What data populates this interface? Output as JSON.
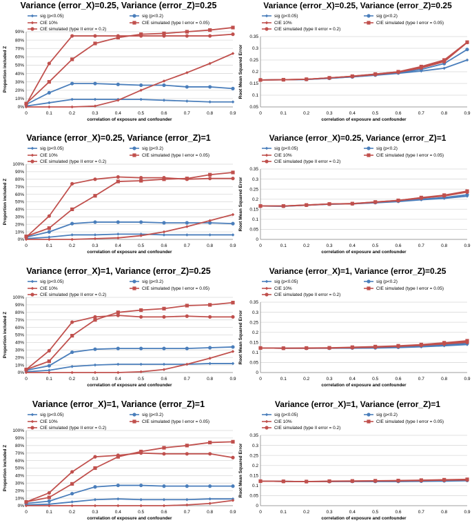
{
  "colors": {
    "blue": "#4a7ebb",
    "red": "#c0504d"
  },
  "legend": [
    {
      "label": "sig (p<0.05)",
      "color": "blue",
      "marker": "diamond"
    },
    {
      "label": "sig (p<0.2)",
      "color": "blue",
      "marker": "circle"
    },
    {
      "label": "CIE 10%",
      "color": "red",
      "marker": "diamond"
    },
    {
      "label": "CIE simulated (type I error = 0.05)",
      "color": "red",
      "marker": "square"
    },
    {
      "label": "CIE simulated (type II error = 0.2)",
      "color": "red",
      "marker": "circle"
    }
  ],
  "chart_data": [
    {
      "type": "line",
      "row": 0,
      "col": 0,
      "title": "Variance (error_X)=0.25, Variance (error_Z)=0.25",
      "xlabel": "correlation of exposure and confounder",
      "ylabel": "Proportion included Z",
      "x": [
        0,
        0.1,
        0.2,
        0.3,
        0.4,
        0.5,
        0.6,
        0.7,
        0.8,
        0.9
      ],
      "xticks": [
        "0",
        "0.1",
        "0.2",
        "0.3",
        "0.4",
        "0.5",
        "0.6",
        "0.7",
        "0.8",
        "0.9"
      ],
      "ylim": [
        0,
        100
      ],
      "yticks": [
        "0%",
        "10%",
        "20%",
        "30%",
        "40%",
        "50%",
        "60%",
        "70%",
        "80%",
        "90%"
      ],
      "series": [
        {
          "name": "sig (p<0.05)",
          "values": [
            1,
            5,
            9,
            9,
            9,
            9,
            8,
            7,
            6,
            6
          ]
        },
        {
          "name": "sig (p<0.2)",
          "values": [
            3,
            17,
            28,
            28,
            27,
            26,
            26,
            24,
            24,
            22
          ]
        },
        {
          "name": "CIE 10%",
          "values": [
            0,
            0,
            0,
            1,
            8,
            20,
            31,
            41,
            52,
            64
          ]
        },
        {
          "name": "CIE simulated (type I error = 0.05)",
          "values": [
            4,
            30,
            57,
            76,
            83,
            87,
            88,
            90,
            92,
            95
          ]
        },
        {
          "name": "CIE simulated (type II error = 0.2)",
          "values": [
            3,
            52,
            85,
            85,
            85,
            85,
            85,
            85,
            85,
            87
          ]
        }
      ]
    },
    {
      "type": "line",
      "row": 0,
      "col": 1,
      "title": "Variance (error_X)=0.25, Variance (error_Z)=0.25",
      "xlabel": "correlation of exposure and confounder",
      "ylabel": "Root Mean Squared Error",
      "x": [
        0,
        0.1,
        0.2,
        0.3,
        0.4,
        0.5,
        0.6,
        0.7,
        0.8,
        0.9
      ],
      "xticks": [
        "0",
        "0.1",
        "0.2",
        "0.3",
        "0.4",
        "0.5",
        "0.6",
        "0.7",
        "0.8",
        "0.9"
      ],
      "ylim": [
        0.05,
        0.35
      ],
      "yticks": [
        "0.05",
        "0.1",
        "0.15",
        "0.2",
        "0.25",
        "0.3",
        "0.35"
      ],
      "series": [
        {
          "name": "sig (p<0.05)",
          "values": [
            0.165,
            0.166,
            0.167,
            0.172,
            0.178,
            0.185,
            0.193,
            0.203,
            0.215,
            0.25
          ]
        },
        {
          "name": "sig (p<0.2)",
          "values": [
            0.165,
            0.166,
            0.167,
            0.172,
            0.178,
            0.186,
            0.195,
            0.21,
            0.235,
            0.295
          ]
        },
        {
          "name": "CIE 10%",
          "values": [
            0.165,
            0.166,
            0.168,
            0.174,
            0.181,
            0.19,
            0.2,
            0.218,
            0.245,
            0.325
          ]
        },
        {
          "name": "CIE simulated (type I error = 0.05)",
          "values": [
            0.165,
            0.166,
            0.168,
            0.174,
            0.181,
            0.19,
            0.2,
            0.222,
            0.25,
            0.326
          ]
        },
        {
          "name": "CIE simulated (type II error = 0.2)",
          "values": [
            0.165,
            0.166,
            0.168,
            0.174,
            0.18,
            0.188,
            0.198,
            0.216,
            0.243,
            0.325
          ]
        }
      ]
    },
    {
      "type": "line",
      "row": 1,
      "col": 0,
      "title": "Variance (error_X)=0.25, Variance (error_Z)=1",
      "xlabel": "correlation of exposure and confounder",
      "ylabel": "Proportion included Z",
      "x": [
        0,
        0.1,
        0.2,
        0.3,
        0.4,
        0.5,
        0.6,
        0.7,
        0.8,
        0.9
      ],
      "xticks": [
        "0",
        "0.1",
        "0.2",
        "0.3",
        "0.4",
        "0.5",
        "0.6",
        "0.7",
        "0.8",
        "0.9"
      ],
      "ylim": [
        0,
        100
      ],
      "yticks": [
        "0%",
        "10%",
        "20%",
        "30%",
        "40%",
        "50%",
        "60%",
        "70%",
        "80%",
        "90%",
        "100%"
      ],
      "series": [
        {
          "name": "sig (p<0.05)",
          "values": [
            1,
            3,
            6,
            6,
            7,
            7,
            6,
            6,
            6,
            6
          ]
        },
        {
          "name": "sig (p<0.2)",
          "values": [
            3,
            10,
            21,
            23,
            23,
            23,
            22,
            22,
            22,
            21
          ]
        },
        {
          "name": "CIE 10%",
          "values": [
            0,
            0,
            0,
            1,
            2,
            5,
            10,
            17,
            25,
            33
          ]
        },
        {
          "name": "CIE simulated (type I error = 0.05)",
          "values": [
            4,
            15,
            40,
            58,
            77,
            78,
            80,
            81,
            86,
            89
          ]
        },
        {
          "name": "CIE simulated (type II error = 0.2)",
          "values": [
            3,
            31,
            74,
            80,
            83,
            82,
            82,
            80,
            81,
            81
          ]
        }
      ]
    },
    {
      "type": "line",
      "row": 1,
      "col": 1,
      "title": "Variance (error_X)=0.25, Variance (error_Z)=1",
      "xlabel": "correlation of exposure and confounder",
      "ylabel": "Root Mean Squared Error",
      "x": [
        0,
        0.1,
        0.2,
        0.3,
        0.4,
        0.5,
        0.6,
        0.7,
        0.8,
        0.9
      ],
      "xticks": [
        "0",
        "0.1",
        "0.2",
        "0.3",
        "0.4",
        "0.5",
        "0.6",
        "0.7",
        "0.8",
        "0.9"
      ],
      "ylim": [
        0,
        0.35
      ],
      "yticks": [
        "0",
        "0.05",
        "0.1",
        "0.15",
        "0.2",
        "0.25",
        "0.3",
        "0.35"
      ],
      "series": [
        {
          "name": "sig (p<0.05)",
          "values": [
            0.166,
            0.165,
            0.17,
            0.175,
            0.177,
            0.182,
            0.188,
            0.197,
            0.204,
            0.215
          ]
        },
        {
          "name": "sig (p<0.2)",
          "values": [
            0.166,
            0.165,
            0.17,
            0.175,
            0.177,
            0.183,
            0.19,
            0.2,
            0.208,
            0.222
          ]
        },
        {
          "name": "CIE 10%",
          "values": [
            0.166,
            0.166,
            0.171,
            0.176,
            0.178,
            0.186,
            0.194,
            0.207,
            0.218,
            0.238
          ]
        },
        {
          "name": "CIE simulated (type I error = 0.05)",
          "values": [
            0.166,
            0.166,
            0.171,
            0.176,
            0.178,
            0.186,
            0.194,
            0.208,
            0.22,
            0.24
          ]
        },
        {
          "name": "CIE simulated (type II error = 0.2)",
          "values": [
            0.166,
            0.166,
            0.17,
            0.176,
            0.177,
            0.185,
            0.193,
            0.205,
            0.216,
            0.235
          ]
        }
      ]
    },
    {
      "type": "line",
      "row": 2,
      "col": 0,
      "title": "Variance (error_X)=1, Variance (error_Z)=0.25",
      "xlabel": "correlation of exposure and confounder",
      "ylabel": "Proportion included Z",
      "x": [
        0,
        0.1,
        0.2,
        0.3,
        0.4,
        0.5,
        0.6,
        0.7,
        0.8,
        0.9
      ],
      "xticks": [
        "0",
        "0.1",
        "0.2",
        "0.3",
        "0.4",
        "0.5",
        "0.6",
        "0.7",
        "0.8",
        "0.9"
      ],
      "ylim": [
        0,
        100
      ],
      "yticks": [
        "0%",
        "10%",
        "20%",
        "30%",
        "40%",
        "50%",
        "60%",
        "70%",
        "80%",
        "90%",
        "100%"
      ],
      "series": [
        {
          "name": "sig (p<0.05)",
          "values": [
            1,
            3,
            8,
            10,
            11,
            11,
            11,
            11,
            12,
            12
          ]
        },
        {
          "name": "sig (p<0.2)",
          "values": [
            3,
            9,
            27,
            31,
            32,
            32,
            32,
            32,
            33,
            34
          ]
        },
        {
          "name": "CIE 10%",
          "values": [
            0,
            0,
            0,
            0,
            0,
            1,
            4,
            11,
            19,
            28
          ]
        },
        {
          "name": "CIE simulated (type I error = 0.05)",
          "values": [
            4,
            15,
            49,
            70,
            80,
            83,
            85,
            89,
            90,
            93
          ]
        },
        {
          "name": "CIE simulated (type II error = 0.2)",
          "values": [
            4,
            29,
            67,
            74,
            76,
            74,
            74,
            75,
            74,
            74
          ]
        }
      ]
    },
    {
      "type": "line",
      "row": 2,
      "col": 1,
      "title": "Variance (error_X)=1, Variance (error_Z)=0.25",
      "xlabel": "correlation of exposure and confounder",
      "ylabel": "Root Mean Squared Error",
      "x": [
        0,
        0.1,
        0.2,
        0.3,
        0.4,
        0.5,
        0.6,
        0.7,
        0.8,
        0.9
      ],
      "xticks": [
        "0",
        "0.1",
        "0.2",
        "0.3",
        "0.4",
        "0.5",
        "0.6",
        "0.7",
        "0.8",
        "0.9"
      ],
      "ylim": [
        0,
        0.35
      ],
      "yticks": [
        "0",
        "0.05",
        "0.1",
        "0.15",
        "0.2",
        "0.25",
        "0.3",
        "0.35"
      ],
      "series": [
        {
          "name": "sig (p<0.05)",
          "values": [
            0.122,
            0.121,
            0.121,
            0.121,
            0.121,
            0.122,
            0.124,
            0.128,
            0.133,
            0.139
          ]
        },
        {
          "name": "sig (p<0.2)",
          "values": [
            0.122,
            0.121,
            0.121,
            0.121,
            0.122,
            0.123,
            0.126,
            0.131,
            0.137,
            0.145
          ]
        },
        {
          "name": "CIE 10%",
          "values": [
            0.122,
            0.121,
            0.121,
            0.122,
            0.124,
            0.127,
            0.131,
            0.137,
            0.145,
            0.155
          ]
        },
        {
          "name": "CIE simulated (type I error = 0.05)",
          "values": [
            0.122,
            0.121,
            0.122,
            0.123,
            0.126,
            0.129,
            0.133,
            0.139,
            0.148,
            0.158
          ]
        },
        {
          "name": "CIE simulated (type II error = 0.2)",
          "values": [
            0.122,
            0.121,
            0.121,
            0.122,
            0.124,
            0.126,
            0.13,
            0.135,
            0.142,
            0.15
          ]
        }
      ]
    },
    {
      "type": "line",
      "row": 3,
      "col": 0,
      "title": "Variance (error_X)=1, Variance (error_Z)=1",
      "xlabel": "correlation of exposure and confounder",
      "ylabel": "Proportion included Z",
      "x": [
        0,
        0.1,
        0.2,
        0.3,
        0.4,
        0.5,
        0.6,
        0.7,
        0.8,
        0.9
      ],
      "xticks": [
        "0",
        "0.1",
        "0.2",
        "0.3",
        "0.4",
        "0.5",
        "0.6",
        "0.7",
        "0.8",
        "0.9"
      ],
      "ylim": [
        0,
        100
      ],
      "yticks": [
        "0%",
        "10%",
        "20%",
        "30%",
        "40%",
        "50%",
        "60%",
        "70%",
        "80%",
        "90%",
        "100%"
      ],
      "series": [
        {
          "name": "sig (p<0.05)",
          "values": [
            1,
            2,
            5,
            8,
            9,
            8,
            8,
            8,
            9,
            9
          ]
        },
        {
          "name": "sig (p<0.2)",
          "values": [
            3,
            6,
            16,
            25,
            27,
            27,
            26,
            26,
            26,
            26
          ]
        },
        {
          "name": "CIE 10%",
          "values": [
            0,
            0,
            0,
            0,
            0,
            0,
            0,
            1,
            3,
            7
          ]
        },
        {
          "name": "CIE simulated (type I error = 0.05)",
          "values": [
            5,
            11,
            29,
            50,
            65,
            72,
            77,
            80,
            84,
            85
          ]
        },
        {
          "name": "CIE simulated (type II error = 0.2)",
          "values": [
            5,
            17,
            45,
            65,
            67,
            70,
            69,
            69,
            69,
            64
          ]
        }
      ]
    },
    {
      "type": "line",
      "row": 3,
      "col": 1,
      "title": "Variance (error_X)=1, Variance (error_Z)=1",
      "xlabel": "correlation of exposure and confounder",
      "ylabel": "Root Mean Squared Error",
      "x": [
        0,
        0.1,
        0.2,
        0.3,
        0.4,
        0.5,
        0.6,
        0.7,
        0.8,
        0.9
      ],
      "xticks": [
        "0",
        "0.1",
        "0.2",
        "0.3",
        "0.4",
        "0.5",
        "0.6",
        "0.7",
        "0.8",
        "0.9"
      ],
      "ylim": [
        0,
        0.35
      ],
      "yticks": [
        "0",
        "0.05",
        "0.1",
        "0.15",
        "0.2",
        "0.25",
        "0.3",
        "0.35"
      ],
      "series": [
        {
          "name": "sig (p<0.05)",
          "values": [
            0.122,
            0.121,
            0.12,
            0.12,
            0.12,
            0.12,
            0.12,
            0.121,
            0.122,
            0.124
          ]
        },
        {
          "name": "sig (p<0.2)",
          "values": [
            0.122,
            0.121,
            0.12,
            0.12,
            0.121,
            0.121,
            0.121,
            0.122,
            0.124,
            0.126
          ]
        },
        {
          "name": "CIE 10%",
          "values": [
            0.122,
            0.121,
            0.12,
            0.121,
            0.122,
            0.123,
            0.124,
            0.126,
            0.128,
            0.13
          ]
        },
        {
          "name": "CIE simulated (type I error = 0.05)",
          "values": [
            0.122,
            0.121,
            0.12,
            0.122,
            0.123,
            0.124,
            0.125,
            0.127,
            0.129,
            0.131
          ]
        },
        {
          "name": "CIE simulated (type II error = 0.2)",
          "values": [
            0.122,
            0.121,
            0.12,
            0.121,
            0.122,
            0.123,
            0.124,
            0.125,
            0.127,
            0.128
          ]
        }
      ]
    }
  ]
}
